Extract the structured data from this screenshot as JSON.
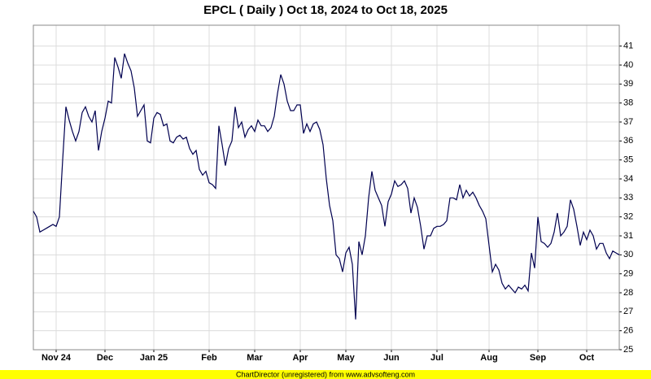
{
  "chart_data": {
    "type": "line",
    "title": "EPCL ( Daily ) Oct 18, 2024 to Oct 18, 2025",
    "footer": "ChartDirector (unregistered) from www.advsofteng.com",
    "color": "#000050",
    "grid": true,
    "ylim": [
      25,
      42.1
    ],
    "yticks": [
      25,
      26,
      27,
      28,
      29,
      30,
      31,
      32,
      33,
      34,
      35,
      36,
      37,
      38,
      39,
      40,
      41
    ],
    "categories": [
      null,
      null,
      null,
      null,
      null,
      null,
      null,
      "Nov 24",
      null,
      null,
      null,
      null,
      null,
      null,
      null,
      null,
      null,
      null,
      null,
      null,
      null,
      null,
      "Dec",
      null,
      null,
      null,
      null,
      null,
      null,
      null,
      null,
      null,
      null,
      null,
      null,
      null,
      null,
      "Jan 25",
      null,
      null,
      null,
      null,
      null,
      null,
      null,
      null,
      null,
      null,
      null,
      null,
      null,
      null,
      null,
      null,
      "Feb",
      null,
      null,
      null,
      null,
      null,
      null,
      null,
      null,
      null,
      null,
      null,
      null,
      null,
      "Mar",
      null,
      null,
      null,
      null,
      null,
      null,
      null,
      null,
      null,
      null,
      null,
      null,
      null,
      "Apr",
      null,
      null,
      null,
      null,
      null,
      null,
      null,
      null,
      null,
      null,
      null,
      null,
      null,
      "May",
      null,
      null,
      null,
      null,
      null,
      null,
      null,
      null,
      null,
      null,
      null,
      null,
      null,
      "Jun",
      null,
      null,
      null,
      null,
      null,
      null,
      null,
      null,
      null,
      null,
      null,
      null,
      null,
      "Jul",
      null,
      null,
      null,
      null,
      null,
      null,
      null,
      null,
      null,
      null,
      null,
      null,
      null,
      null,
      null,
      "Aug",
      null,
      null,
      null,
      null,
      null,
      null,
      null,
      null,
      null,
      null,
      null,
      null,
      null,
      null,
      "Sep",
      null,
      null,
      null,
      null,
      null,
      null,
      null,
      null,
      null,
      null,
      null,
      null,
      null,
      null,
      "Oct",
      null,
      null,
      null,
      null,
      null,
      null,
      null,
      null,
      null,
      null
    ],
    "values": [
      32.3,
      32.0,
      31.2,
      31.3,
      31.4,
      31.5,
      31.6,
      31.5,
      32.0,
      35.0,
      37.8,
      37.1,
      36.5,
      36.0,
      36.5,
      37.5,
      37.8,
      37.3,
      37.0,
      37.6,
      35.5,
      36.5,
      37.2,
      38.1,
      38.0,
      40.4,
      39.9,
      39.3,
      40.6,
      40.1,
      39.7,
      38.8,
      37.3,
      37.6,
      37.9,
      36.0,
      35.9,
      37.2,
      37.5,
      37.4,
      36.8,
      36.9,
      36.0,
      35.9,
      36.2,
      36.3,
      36.1,
      36.2,
      35.6,
      35.3,
      35.5,
      34.5,
      34.2,
      34.4,
      33.8,
      33.7,
      33.5,
      36.8,
      35.8,
      34.7,
      35.6,
      36.0,
      37.8,
      36.7,
      37.0,
      36.2,
      36.6,
      36.8,
      36.5,
      37.1,
      36.8,
      36.8,
      36.5,
      36.7,
      37.3,
      38.5,
      39.5,
      39.0,
      38.1,
      37.6,
      37.6,
      37.9,
      37.9,
      36.4,
      36.9,
      36.5,
      36.9,
      37.0,
      36.6,
      35.8,
      34.0,
      32.6,
      31.8,
      30.0,
      29.8,
      29.1,
      30.1,
      30.4,
      29.5,
      26.6,
      30.7,
      30.0,
      31.0,
      33.0,
      34.4,
      33.4,
      33.0,
      32.6,
      31.5,
      32.8,
      33.2,
      33.9,
      33.6,
      33.7,
      33.9,
      33.5,
      32.2,
      33.0,
      32.5,
      31.5,
      30.3,
      31.0,
      31.0,
      31.4,
      31.5,
      31.5,
      31.6,
      31.8,
      33.0,
      33.0,
      32.9,
      33.7,
      33.0,
      33.4,
      33.1,
      33.3,
      33.0,
      32.6,
      32.3,
      31.9,
      30.5,
      29.1,
      29.5,
      29.2,
      28.5,
      28.2,
      28.4,
      28.2,
      28.0,
      28.3,
      28.2,
      28.4,
      28.1,
      30.1,
      29.3,
      32.0,
      30.7,
      30.6,
      30.4,
      30.6,
      31.2,
      32.2,
      31.0,
      31.2,
      31.5,
      32.9,
      32.4,
      31.5,
      30.5,
      31.2,
      30.8,
      31.3,
      31.0,
      30.3,
      30.6,
      30.6,
      30.1,
      29.8,
      30.2,
      30.1,
      30.0
    ]
  }
}
